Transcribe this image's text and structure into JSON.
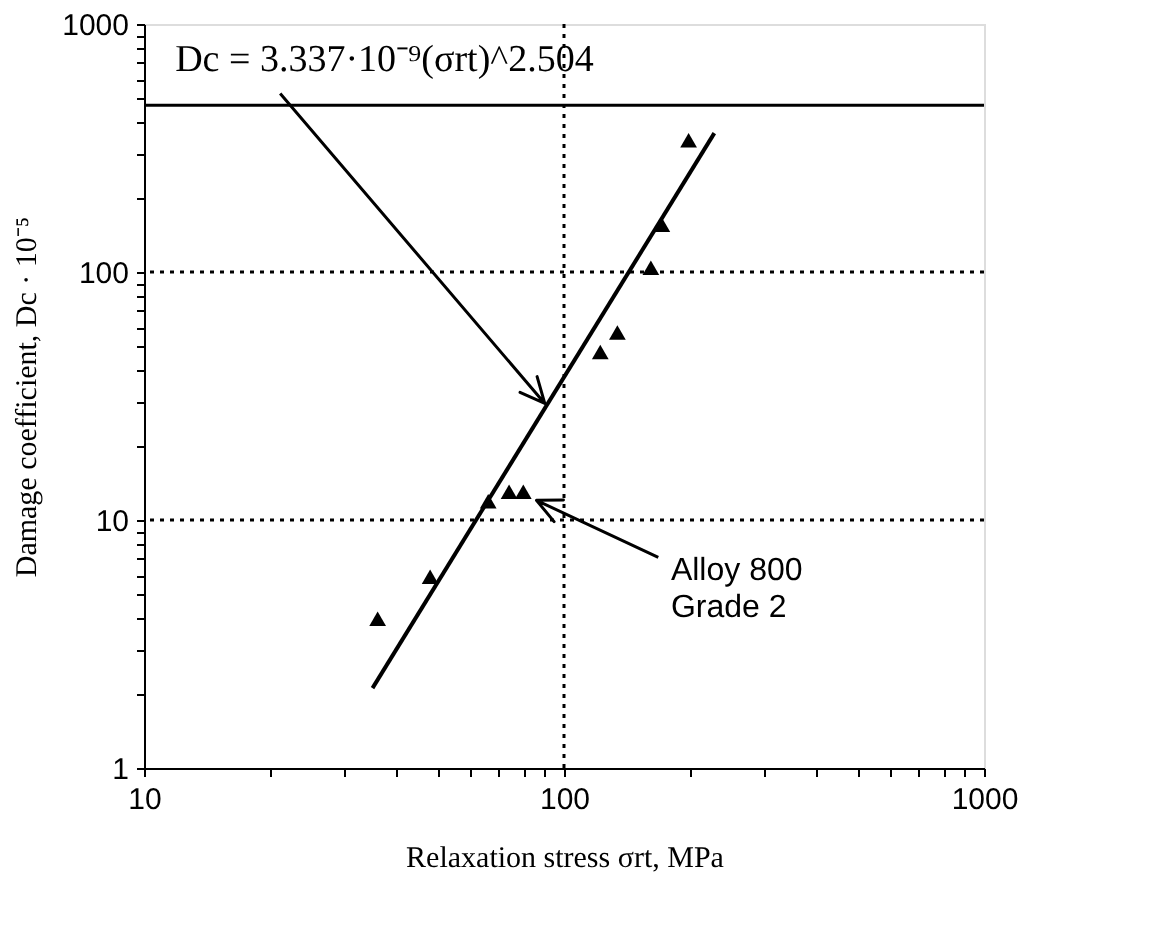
{
  "chart_data": {
    "type": "scatter",
    "xlabel": "Relaxation stress σrt, MPa",
    "ylabel": "Damage coefficient, Dc · 10⁻⁵",
    "log": "xy",
    "xlim": [
      10,
      1000
    ],
    "ylim": [
      1,
      1000
    ],
    "xticks": [
      10,
      {
        "value": 20,
        "label": null
      },
      {
        "value": 30,
        "label": null
      },
      {
        "value": 40,
        "label": null
      },
      {
        "value": 50,
        "label": null
      },
      {
        "value": 60,
        "label": null
      },
      {
        "value": 70,
        "label": null
      },
      {
        "value": 80,
        "label": null
      },
      {
        "value": 90,
        "label": null
      },
      100,
      {
        "value": 200,
        "label": null
      },
      {
        "value": 300,
        "label": null
      },
      {
        "value": 400,
        "label": null
      },
      {
        "value": 500,
        "label": null
      },
      {
        "value": 600,
        "label": null
      },
      {
        "value": 700,
        "label": null
      },
      {
        "value": 800,
        "label": null
      },
      {
        "value": 900,
        "label": null
      },
      1000
    ],
    "yticks": [
      1,
      {
        "value": 2,
        "label": null
      },
      {
        "value": 3,
        "label": null
      },
      {
        "value": 4,
        "label": null
      },
      {
        "value": 5,
        "label": null
      },
      {
        "value": 6,
        "label": null
      },
      {
        "value": 7,
        "label": null
      },
      {
        "value": 8,
        "label": null
      },
      {
        "value": 9,
        "label": null
      },
      10,
      {
        "value": 20,
        "label": null
      },
      {
        "value": 30,
        "label": null
      },
      {
        "value": 40,
        "label": null
      },
      {
        "value": 50,
        "label": null
      },
      {
        "value": 60,
        "label": null
      },
      {
        "value": 70,
        "label": null
      },
      {
        "value": 80,
        "label": null
      },
      {
        "value": 90,
        "label": null
      },
      100,
      {
        "value": 200,
        "label": null
      },
      {
        "value": 300,
        "label": null
      },
      {
        "value": 400,
        "label": null
      },
      {
        "value": 500,
        "label": null
      },
      {
        "value": 600,
        "label": null
      },
      {
        "value": 700,
        "label": null
      },
      {
        "value": 800,
        "label": null
      },
      {
        "value": 900,
        "label": null
      },
      1000
    ],
    "grid": false,
    "series": [
      {
        "marker": "triangle",
        "color": "#000000",
        "x": [
          36,
          48,
          66,
          74,
          80,
          122,
          134,
          161,
          171,
          198
        ],
        "values": [
          4,
          5.9,
          11.9,
          13,
          13,
          47.6,
          57,
          104,
          155,
          340
        ]
      },
      {
        "type": "line",
        "line_style": "solid",
        "marker": "none",
        "color": "#000000",
        "x": [
          35,
          228
        ],
        "values": [
          2.1,
          363
        ]
      }
    ],
    "ref_lines": [
      {
        "axis": "y",
        "value": 470,
        "label": null,
        "color": "#000000",
        "line_style": "solid"
      },
      {
        "axis": "x",
        "value": 100,
        "label": null,
        "color": "#000000",
        "line_style": "dotted"
      },
      {
        "axis": "y",
        "value": 10,
        "label": null,
        "color": "#000000",
        "line_style": "dotted"
      },
      {
        "axis": "y",
        "value": 100,
        "label": null,
        "color": "#000000",
        "line_style": "dotted"
      }
    ],
    "annotations": [
      {
        "text": "Dc = 3.337·10⁻⁹(σrt)^2.504",
        "x": 90,
        "y": 29.5
      },
      {
        "text": "Alloy 800\nGrade 2",
        "x": 86,
        "y": 12
      }
    ]
  }
}
